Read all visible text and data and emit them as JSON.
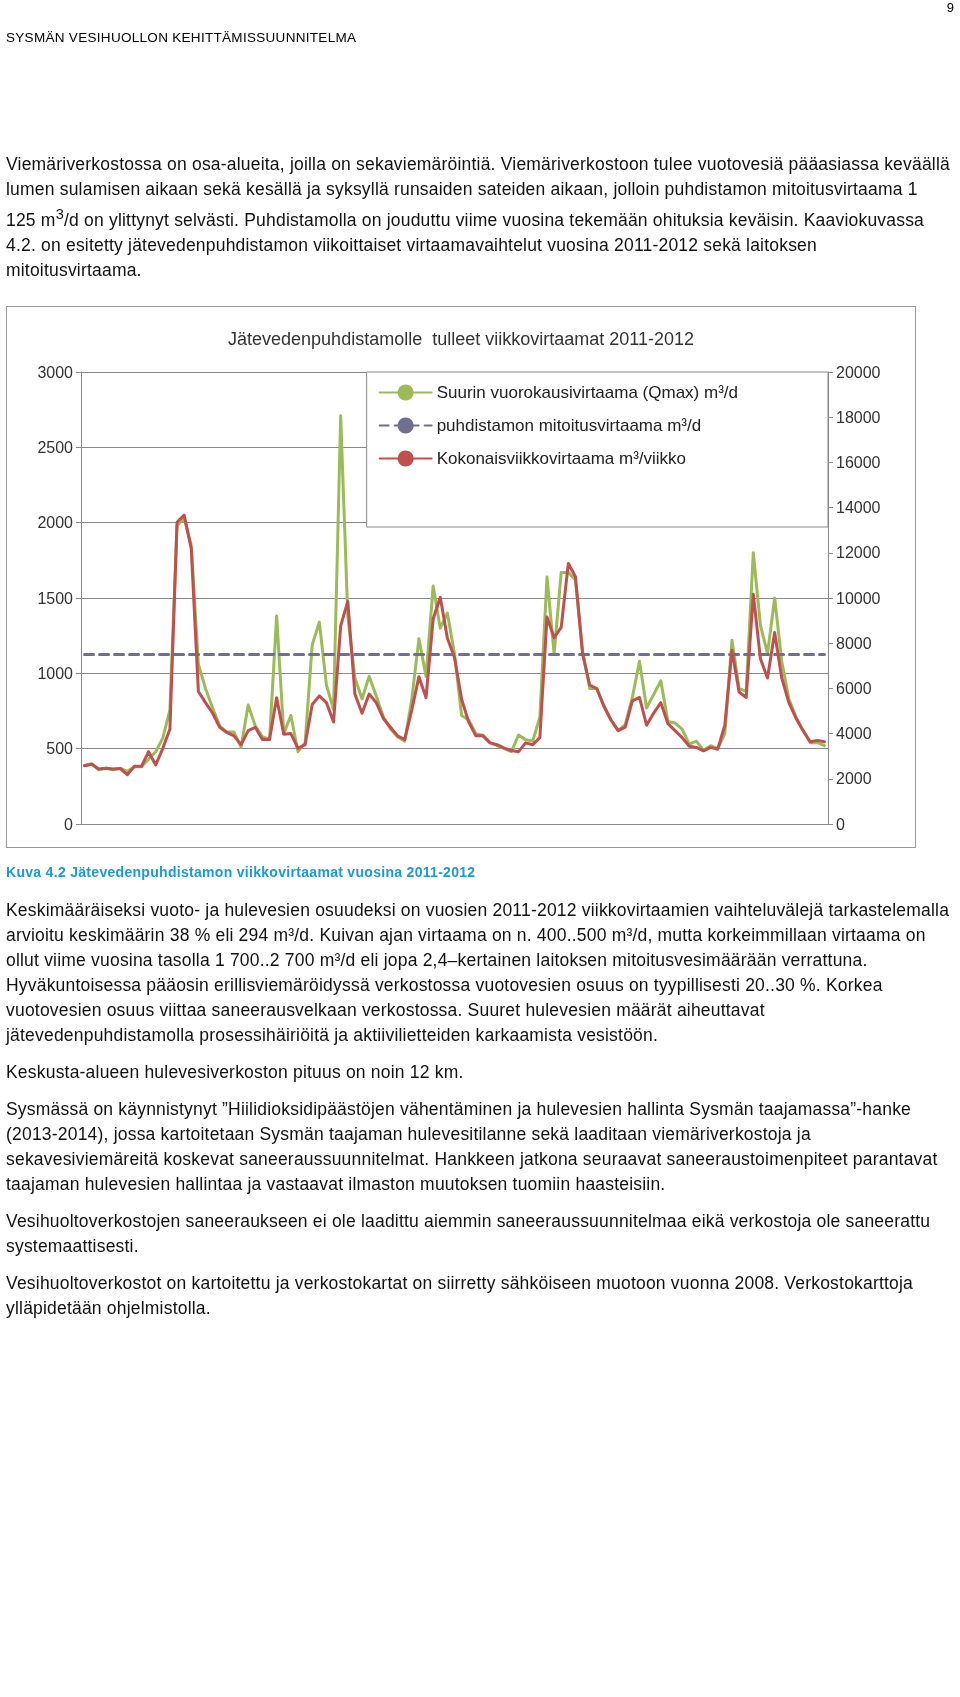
{
  "chart_data": {
    "type": "line",
    "title": "Jätevedenpuhdistamolle  tulleet viikkovirtaamat 2011-2012",
    "categories": [
      null,
      null,
      null,
      null,
      null,
      null,
      null,
      null,
      null,
      null,
      null,
      null,
      null,
      null,
      null,
      null,
      null,
      null,
      null,
      null,
      null,
      null,
      null,
      null,
      null,
      null,
      null,
      null,
      null,
      null,
      null,
      null,
      null,
      null,
      null,
      null,
      null,
      null,
      null,
      null,
      null,
      null,
      null,
      null,
      null,
      null,
      null,
      null,
      null,
      null,
      null,
      null,
      null,
      null,
      null,
      null,
      null,
      null,
      null,
      null,
      null,
      null,
      null,
      null,
      null,
      null,
      null,
      null,
      null,
      null,
      null,
      null,
      null,
      null,
      null,
      null,
      null,
      null,
      null,
      null,
      null,
      null,
      null,
      null,
      null,
      null,
      null,
      null,
      null,
      null,
      null,
      null,
      null,
      null,
      null,
      null,
      null,
      null,
      null,
      null,
      null,
      null,
      null,
      null,
      null
    ],
    "series": [
      {
        "name": "Suurin vuorokausivirtaama (Qmax) m³/d",
        "color": "#9bbb59",
        "values": [
          390,
          400,
          360,
          370,
          360,
          370,
          350,
          380,
          380,
          430,
          480,
          570,
          760,
          1980,
          2030,
          1850,
          1060,
          900,
          770,
          650,
          610,
          610,
          510,
          790,
          650,
          580,
          560,
          1380,
          600,
          720,
          480,
          540,
          1190,
          1340,
          920,
          760,
          2710,
          1380,
          970,
          830,
          980,
          850,
          710,
          630,
          580,
          550,
          830,
          1230,
          980,
          1580,
          1300,
          1400,
          1130,
          720,
          690,
          600,
          590,
          540,
          520,
          500,
          480,
          590,
          560,
          550,
          710,
          1640,
          1130,
          1670,
          1670,
          1620,
          1150,
          900,
          900,
          780,
          690,
          620,
          660,
          840,
          1080,
          770,
          860,
          950,
          680,
          670,
          630,
          530,
          550,
          490,
          520,
          500,
          600,
          1220,
          900,
          880,
          1800,
          1320,
          1130,
          1500,
          1080,
          830,
          710,
          620,
          540,
          540,
          520
        ]
      },
      {
        "name": "puhdistamon mitoitusvirtaama m³/d",
        "color": "#6f6f8f",
        "line_style": "dashed",
        "values": [
          1125,
          1125,
          1125,
          1125,
          1125,
          1125,
          1125,
          1125,
          1125,
          1125,
          1125,
          1125,
          1125,
          1125,
          1125,
          1125,
          1125,
          1125,
          1125,
          1125,
          1125,
          1125,
          1125,
          1125,
          1125,
          1125,
          1125,
          1125,
          1125,
          1125,
          1125,
          1125,
          1125,
          1125,
          1125,
          1125,
          1125,
          1125,
          1125,
          1125,
          1125,
          1125,
          1125,
          1125,
          1125,
          1125,
          1125,
          1125,
          1125,
          1125,
          1125,
          1125,
          1125,
          1125,
          1125,
          1125,
          1125,
          1125,
          1125,
          1125,
          1125,
          1125,
          1125,
          1125,
          1125,
          1125,
          1125,
          1125,
          1125,
          1125,
          1125,
          1125,
          1125,
          1125,
          1125,
          1125,
          1125,
          1125,
          1125,
          1125,
          1125,
          1125,
          1125,
          1125,
          1125,
          1125,
          1125,
          1125,
          1125,
          1125,
          1125,
          1125,
          1125,
          1125,
          1125,
          1125,
          1125,
          1125,
          1125,
          1125,
          1125,
          1125,
          1125,
          1125,
          1125
        ]
      },
      {
        "name": "Kokonaisviikkovirtaama m³/viikko",
        "color": "#c0504d",
        "axis": "y2",
        "values": [
          2580,
          2640,
          2430,
          2470,
          2430,
          2460,
          2180,
          2550,
          2550,
          3200,
          2610,
          3350,
          4200,
          13350,
          13670,
          12170,
          5860,
          5370,
          4900,
          4280,
          4050,
          3900,
          3510,
          4130,
          4280,
          3740,
          3740,
          5590,
          3970,
          4000,
          3350,
          3510,
          5290,
          5670,
          5370,
          4510,
          8770,
          9850,
          5750,
          4900,
          5750,
          5370,
          4670,
          4280,
          3900,
          3740,
          5050,
          6520,
          5590,
          9070,
          10030,
          8220,
          7370,
          5520,
          4510,
          3900,
          3900,
          3590,
          3510,
          3360,
          3250,
          3200,
          3590,
          3510,
          3820,
          9160,
          8240,
          8700,
          11530,
          10940,
          7540,
          6150,
          5990,
          5220,
          4600,
          4130,
          4290,
          5450,
          5600,
          4370,
          4910,
          5370,
          4440,
          4130,
          3820,
          3440,
          3390,
          3240,
          3390,
          3310,
          4370,
          7690,
          5840,
          5600,
          10170,
          7310,
          6460,
          8470,
          6460,
          5370,
          4680,
          4130,
          3640,
          3700,
          3640
        ]
      }
    ],
    "ylim": [
      0,
      3000
    ],
    "yticks": [
      0,
      500,
      1000,
      1500,
      2000,
      2500,
      3000
    ],
    "y2lim": [
      0,
      20000
    ],
    "y2ticks": [
      0,
      2000,
      4000,
      6000,
      8000,
      10000,
      12000,
      14000,
      16000,
      18000,
      20000
    ],
    "grid": "y",
    "legend": "top right",
    "marker": "none",
    "annotations": [
      "9",
      "SYSMÄN VESIHUOLLON KEHITTÄMISSUUNNITELMA",
      "Viemäriverkostossa on osa-alueita, joilla on sekaviemäröintiä. Viemäriverkostoon tulee vuotovesiä pääasiassa keväällä lumen sulamisen aikaan sekä kesällä ja syksyllä runsaiden sateiden aikaan, jolloin puhdistamon mitoitusvirtaama 1 125 m$^{3}$/d on ylittynyt selvästi. Puhdistamolla on jouduttu viime vuosina tekemään ohituksia keväisin. Kaaviokuvassa 4.2. on esitetty jätevedenpuhdistamon viikoittaiset virtaamavaihtelut vuosina 2011-2012 sekä laitoksen mitoitusvirtaama.",
      "Kuva 4.2 Jätevedenpuhdistamon viikkovirtaamat vuosina 2011-2012",
      "Keskimääräiseksi vuoto- ja hulevesien osuudeksi on vuosien 2011-2012 viikkovirtaamien vaihteluvälejä tarkastelemalla arvioitu keskimäärin 38 % eli 294 m³/d. Kuivan ajan virtaama on n. 400..500 m³/d, mutta korkeimmillaan virtaama on ollut viime vuosina tasolla 1 700..2 700 m³/d eli jopa 2,4–kertainen laitoksen mitoitusvesimäärään verrattuna. Hyväkuntoisessa pääosin erillisviemäröidyssä verkostossa vuotovesien osuus on tyypillisesti 20..30 %. Korkea vuotovesien osuus viittaa saneerausvelkaan verkostossa. Suuret hulevesien määrät aiheuttavat jätevedenpuhdistamolla prosessihäiriöitä ja aktiivilietteiden karkaamista vesistöön.",
      "Keskusta-alueen hulevesiverkoston pituus on noin 12 km.",
      "Sysmässä on käynnistynyt ”Hiilidioksidipäästöjen vähentäminen ja hulevesien hallinta Sysmän taajamassa”-hanke (2013-2014), jossa kartoitetaan Sysmän taajaman hulevesitilanne sekä laaditaan viemäriverkostoja ja sekavesiviemäreitä koskevat saneeraussuunnitelmat. Hankkeen jatkona seuraavat saneeraustoimenpiteet parantavat taajaman hulevesien hallintaa ja vastaavat ilmaston muutoksen tuomiin haasteisiin.",
      "Vesihuoltoverkostojen saneeraukseen ei ole laadittu aiemmin saneeraussuunnitelmaa eikä verkostoja ole saneerattu systemaattisesti.",
      "Vesihuoltoverkostot on kartoitettu ja verkostokartat on siirretty sähköiseen muotoon vuonna 2008. Verkostokarttoja ylläpidetään ohjelmistolla."
    ]
  }
}
